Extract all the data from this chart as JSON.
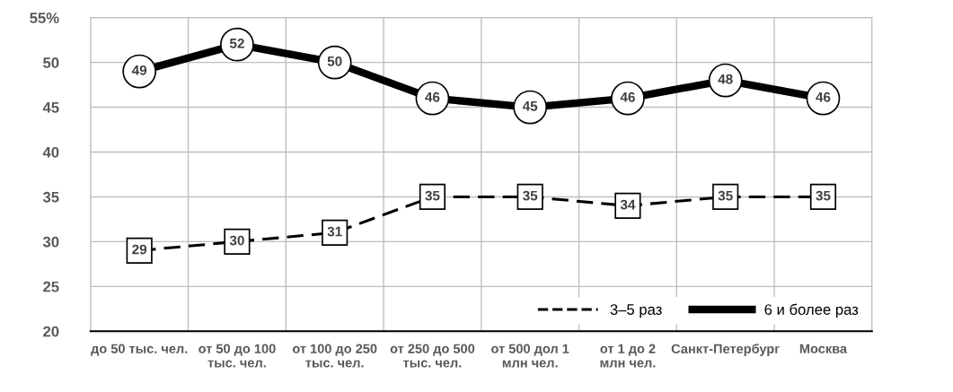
{
  "chart_data": {
    "type": "line",
    "categories": [
      "до 50 тыс. чел.",
      "от 50 до 100\nтыс. чел.",
      "от 100 до 250\nтыс. чел.",
      "от 250 до 500\nтыс. чел.",
      "от 500 дол 1\nмлн чел.",
      "от 1 до 2\nмлн чел.",
      "Санкт-Петербург",
      "Москва"
    ],
    "series": [
      {
        "name": "3–5 раз",
        "color": "#000000",
        "marker": "square",
        "line_style": "dashed",
        "values": [
          29,
          30,
          31,
          35,
          35,
          34,
          35,
          35
        ]
      },
      {
        "name": "6 и более раз",
        "color": "#000000",
        "marker": "circle",
        "line_style": "solid",
        "values": [
          49,
          52,
          50,
          46,
          45,
          46,
          48,
          46
        ]
      }
    ],
    "ylim": [
      20,
      55
    ],
    "yticks": [
      20,
      25,
      30,
      35,
      40,
      45,
      50,
      {
        "value": 55,
        "label": "55%"
      }
    ],
    "grid": true,
    "data_labels": true,
    "legend": "bottom right"
  }
}
